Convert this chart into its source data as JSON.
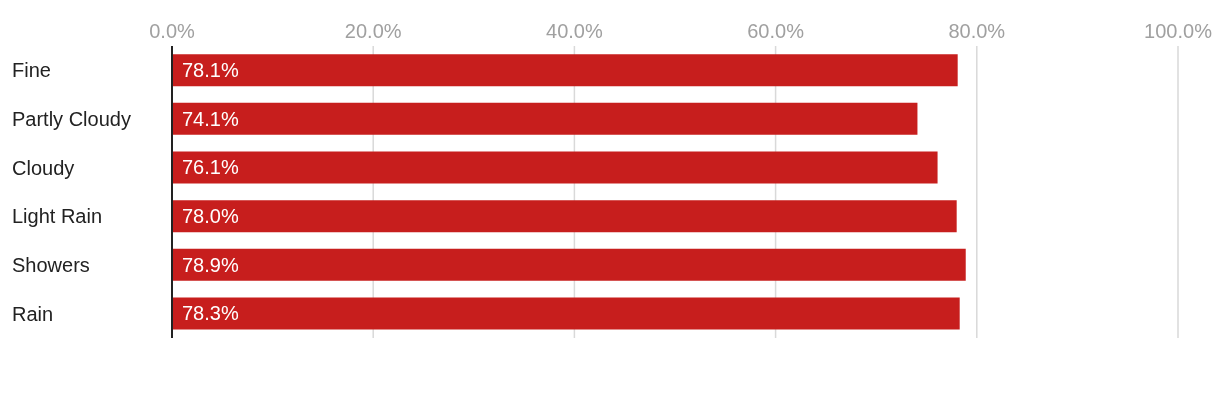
{
  "chart_data": {
    "type": "bar",
    "orientation": "horizontal",
    "categories": [
      "Fine",
      "Partly Cloudy",
      "Cloudy",
      "Light Rain",
      "Showers",
      "Rain"
    ],
    "values": [
      78.1,
      74.1,
      76.1,
      78.0,
      78.9,
      78.3
    ],
    "value_labels": [
      "78.1%",
      "74.1%",
      "76.1%",
      "78.0%",
      "78.9%",
      "78.3%"
    ],
    "color": "#c71e1d",
    "xlim": [
      0,
      100
    ],
    "xticks": [
      {
        "value": 0,
        "label": "0.0%"
      },
      {
        "value": 20,
        "label": "20.0%"
      },
      {
        "value": 40,
        "label": "40.0%"
      },
      {
        "value": 60,
        "label": "60.0%"
      },
      {
        "value": 80,
        "label": "80.0%"
      },
      {
        "value": 100,
        "label": "100.0%"
      }
    ],
    "grid": "x"
  }
}
